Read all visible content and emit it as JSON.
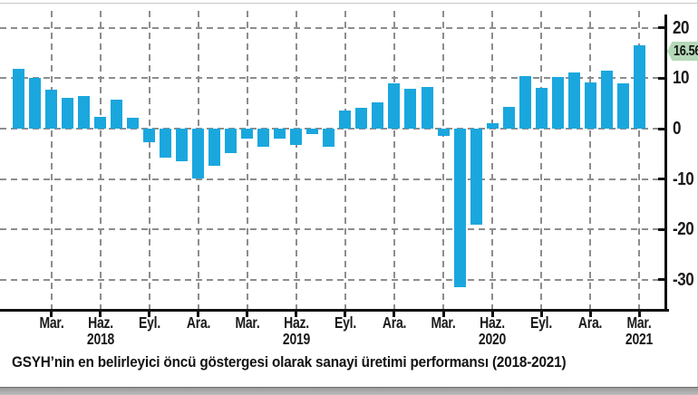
{
  "caption": {
    "text": "GSYH’nin en belirleyici öncü göstergesi olarak sanayi üretimi performansı (2018-2021)"
  },
  "badge": {
    "value": "16.56"
  },
  "colors": {
    "bar": "#1aa7de",
    "grid": "#8d8d8d",
    "axis": "#111111",
    "badge_bg": "#b5d9b8",
    "badge_text": "#101010"
  },
  "chart_data": {
    "type": "bar",
    "title": "",
    "xlabel": "",
    "ylabel": "",
    "x": [
      "2018-01",
      "2018-02",
      "2018-03",
      "2018-04",
      "2018-05",
      "2018-06",
      "2018-07",
      "2018-08",
      "2018-09",
      "2018-10",
      "2018-11",
      "2018-12",
      "2019-01",
      "2019-02",
      "2019-03",
      "2019-04",
      "2019-05",
      "2019-06",
      "2019-07",
      "2019-08",
      "2019-09",
      "2019-10",
      "2019-11",
      "2019-12",
      "2020-01",
      "2020-02",
      "2020-03",
      "2020-04",
      "2020-05",
      "2020-06",
      "2020-07",
      "2020-08",
      "2020-09",
      "2020-10",
      "2020-11",
      "2020-12",
      "2021-01",
      "2021-02",
      "2021-03"
    ],
    "values": [
      11.8,
      10.0,
      7.8,
      6.1,
      6.4,
      2.4,
      5.7,
      2.2,
      -2.7,
      -5.7,
      -6.4,
      -9.8,
      -7.4,
      -4.8,
      -2.0,
      -3.6,
      -1.9,
      -3.2,
      -1.0,
      -3.6,
      3.6,
      4.1,
      5.3,
      9.0,
      7.9,
      8.3,
      -1.5,
      -31.4,
      -19.0,
      1.1,
      4.4,
      10.5,
      8.1,
      10.3,
      11.2,
      9.1,
      11.5,
      9.0,
      16.56
    ],
    "x_ticks": [
      {
        "label": "Mar.",
        "year": ""
      },
      {
        "label": "Haz.",
        "year": "2018"
      },
      {
        "label": "Eyl.",
        "year": ""
      },
      {
        "label": "Ara.",
        "year": ""
      },
      {
        "label": "Mar.",
        "year": ""
      },
      {
        "label": "Haz.",
        "year": "2019"
      },
      {
        "label": "Eyl.",
        "year": ""
      },
      {
        "label": "Ara.",
        "year": ""
      },
      {
        "label": "Mar.",
        "year": ""
      },
      {
        "label": "Haz.",
        "year": "2020"
      },
      {
        "label": "Eyl.",
        "year": ""
      },
      {
        "label": "Ara.",
        "year": ""
      },
      {
        "label": "Mar.",
        "year": "2021"
      }
    ],
    "y_ticks": [
      20,
      10,
      0,
      -10,
      -20,
      -30
    ],
    "ylim": [
      -35,
      22
    ],
    "grid": "dashed",
    "legend": "none",
    "annotation": {
      "type": "last-value-badge",
      "text": "16.56"
    }
  }
}
